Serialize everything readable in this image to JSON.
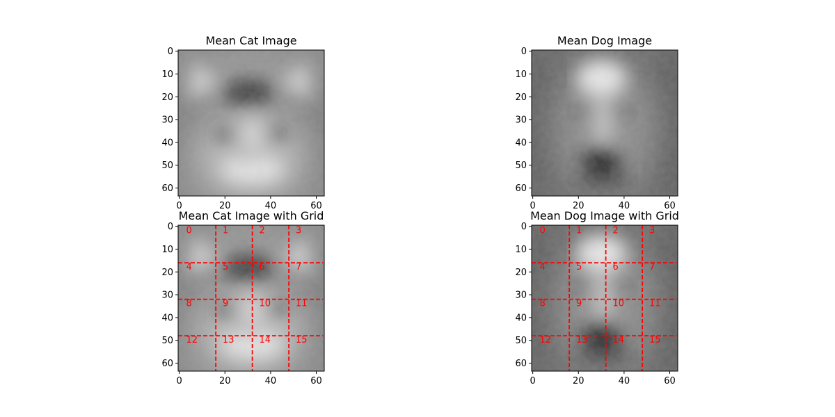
{
  "chart_data": [
    {
      "type": "image",
      "title": "Mean Cat Image",
      "subject": "cat",
      "colormap": "gray",
      "image_size": [
        64,
        64
      ],
      "xlim": [
        0,
        63
      ],
      "ylim": [
        63,
        0
      ],
      "xticks": [
        0,
        20,
        40,
        60
      ],
      "yticks": [
        0,
        10,
        20,
        30,
        40,
        50,
        60
      ],
      "grid": false
    },
    {
      "type": "image",
      "title": "Mean Dog Image",
      "subject": "dog",
      "colormap": "gray",
      "image_size": [
        64,
        64
      ],
      "xlim": [
        0,
        63
      ],
      "ylim": [
        63,
        0
      ],
      "xticks": [
        0,
        20,
        40,
        60
      ],
      "yticks": [
        0,
        10,
        20,
        30,
        40,
        50,
        60
      ],
      "grid": false
    },
    {
      "type": "image",
      "title": "Mean Cat Image with Grid",
      "subject": "cat",
      "colormap": "gray",
      "image_size": [
        64,
        64
      ],
      "xlim": [
        0,
        63
      ],
      "ylim": [
        63,
        0
      ],
      "xticks": [
        0,
        20,
        40,
        60
      ],
      "yticks": [
        0,
        10,
        20,
        30,
        40,
        50,
        60
      ],
      "grid": true,
      "grid_lines": [
        16,
        32,
        48
      ],
      "grid_color": "#ff0000",
      "grid_style": "dashed",
      "cell_labels": [
        "0",
        "1",
        "2",
        "3",
        "4",
        "5",
        "6",
        "7",
        "8",
        "9",
        "10",
        "11",
        "12",
        "13",
        "14",
        "15"
      ]
    },
    {
      "type": "image",
      "title": "Mean Dog Image with Grid",
      "subject": "dog",
      "colormap": "gray",
      "image_size": [
        64,
        64
      ],
      "xlim": [
        0,
        63
      ],
      "ylim": [
        63,
        0
      ],
      "xticks": [
        0,
        20,
        40,
        60
      ],
      "yticks": [
        0,
        10,
        20,
        30,
        40,
        50,
        60
      ],
      "grid": true,
      "grid_lines": [
        16,
        32,
        48
      ],
      "grid_color": "#ff0000",
      "grid_style": "dashed",
      "cell_labels": [
        "0",
        "1",
        "2",
        "3",
        "4",
        "5",
        "6",
        "7",
        "8",
        "9",
        "10",
        "11",
        "12",
        "13",
        "14",
        "15"
      ]
    }
  ]
}
